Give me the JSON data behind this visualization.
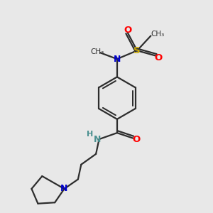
{
  "bg_color": "#e8e8e8",
  "bond_color": "#2d2d2d",
  "N_color": "#0000cd",
  "O_color": "#ff0000",
  "S_color": "#ccaa00",
  "NH_color": "#4a9090",
  "line_width": 1.6,
  "fig_size": [
    3.0,
    3.0
  ],
  "dpi": 100,
  "xlim": [
    0,
    10
  ],
  "ylim": [
    0,
    10
  ]
}
